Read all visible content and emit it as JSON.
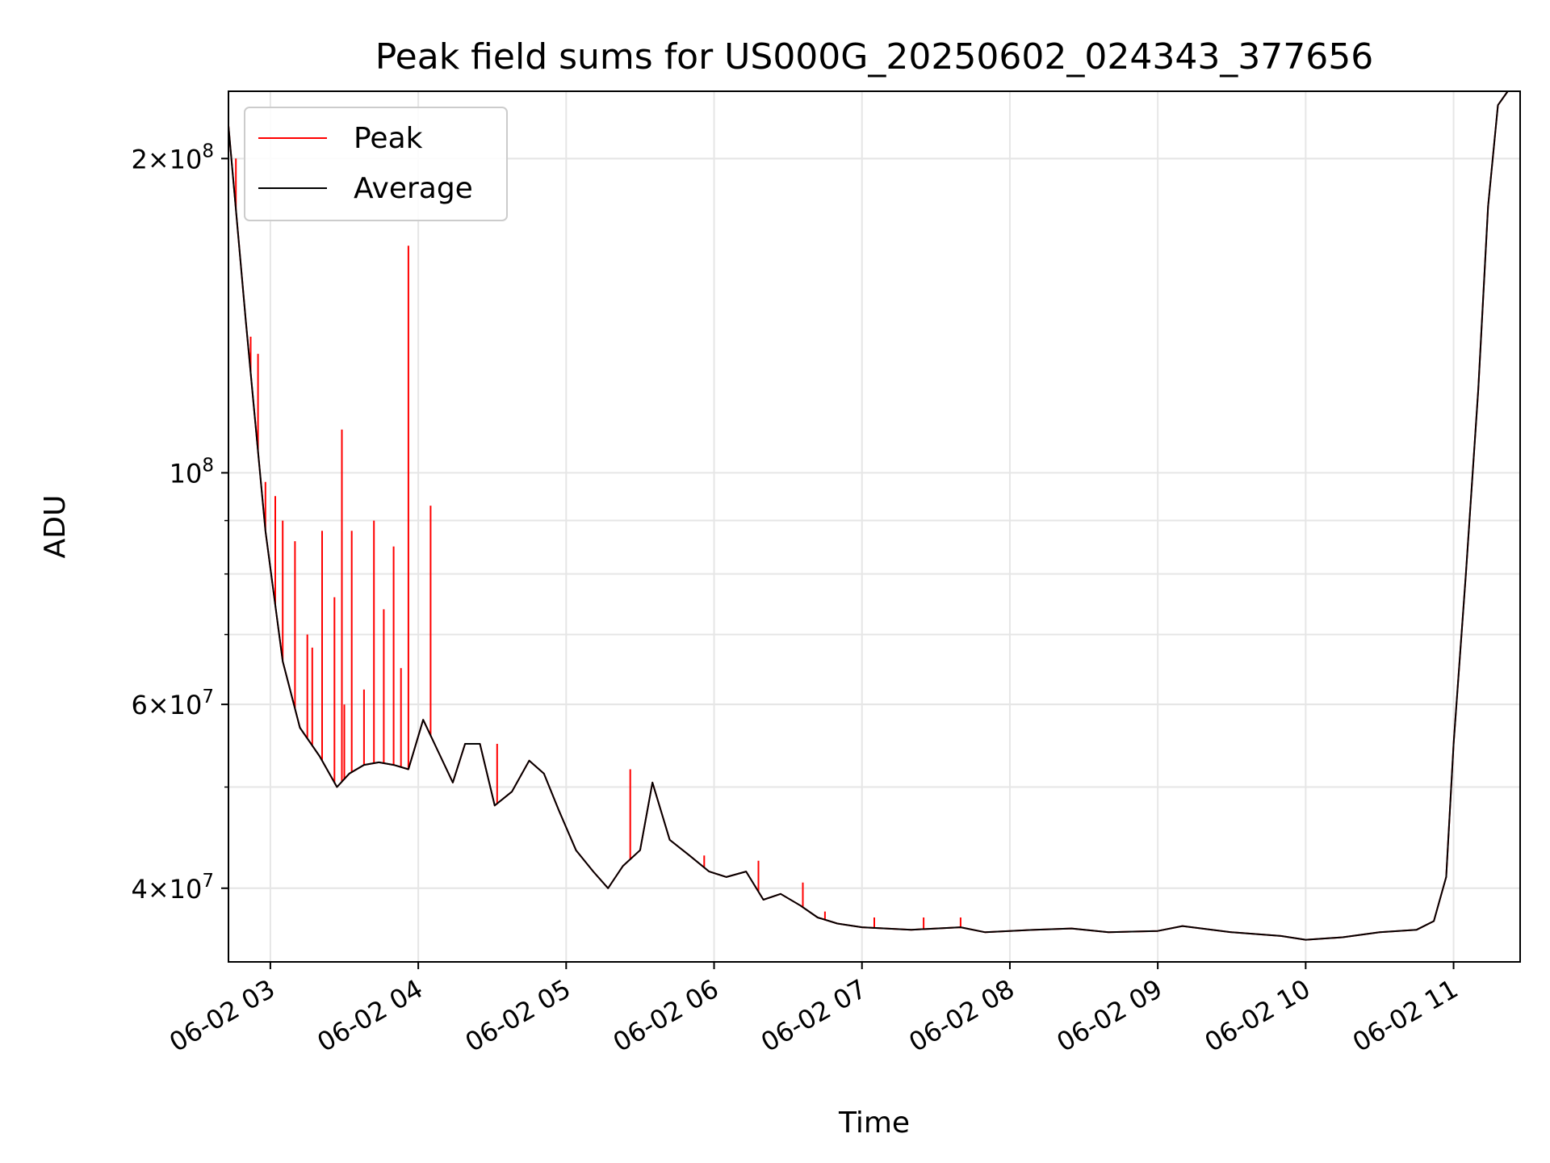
{
  "chart_data": {
    "type": "line",
    "title": "Peak field sums for US000G_20250602_024343_377656",
    "xlabel": "Time",
    "ylabel": "ADU",
    "yscale": "log",
    "ylim": [
      34000000,
      232000000
    ],
    "xlim": [
      "06-02 02:43",
      "06-02 11:27"
    ],
    "x_ticks": [
      "06-02 03",
      "06-02 04",
      "06-02 05",
      "06-02 06",
      "06-02 07",
      "06-02 08",
      "06-02 09",
      "06-02 10",
      "06-02 11"
    ],
    "y_major_ticks": [
      {
        "value": 40000000,
        "mantissa": "4",
        "exp": "7"
      },
      {
        "value": 60000000,
        "mantissa": "6",
        "exp": "7"
      },
      {
        "value": 100000000,
        "mantissa": "",
        "exp": "8"
      },
      {
        "value": 200000000,
        "mantissa": "2",
        "exp": "8"
      }
    ],
    "grid": true,
    "legend_position": "top-left",
    "series": [
      {
        "name": "Average",
        "color": "#000000",
        "x": [
          "06-02 02:43",
          "06-02 02:50",
          "06-02 02:58",
          "06-02 03:05",
          "06-02 03:12",
          "06-02 03:20",
          "06-02 03:27",
          "06-02 03:32",
          "06-02 03:38",
          "06-02 03:44",
          "06-02 03:50",
          "06-02 03:56",
          "06-02 04:02",
          "06-02 04:09",
          "06-02 04:14",
          "06-02 04:19",
          "06-02 04:25",
          "06-02 04:31",
          "06-02 04:38",
          "06-02 04:45",
          "06-02 04:51",
          "06-02 04:57",
          "06-02 05:04",
          "06-02 05:11",
          "06-02 05:17",
          "06-02 05:23",
          "06-02 05:30",
          "06-02 05:35",
          "06-02 05:42",
          "06-02 05:50",
          "06-02 05:58",
          "06-02 06:05",
          "06-02 06:13",
          "06-02 06:20",
          "06-02 06:27",
          "06-02 06:35",
          "06-02 06:42",
          "06-02 06:50",
          "06-02 07:00",
          "06-02 07:20",
          "06-02 07:40",
          "06-02 07:50",
          "06-02 08:10",
          "06-02 08:25",
          "06-02 08:40",
          "06-02 09:00",
          "06-02 09:10",
          "06-02 09:30",
          "06-02 09:50",
          "06-02 10:00",
          "06-02 10:15",
          "06-02 10:30",
          "06-02 10:45",
          "06-02 10:52",
          "06-02 10:57",
          "06-02 11:00",
          "06-02 11:05",
          "06-02 11:10",
          "06-02 11:14",
          "06-02 11:18",
          "06-02 11:22",
          "06-02 11:27"
        ],
        "y": [
          215000000,
          140000000,
          88000000,
          66000000,
          57000000,
          53500000,
          50000000,
          51500000,
          52500000,
          52800000,
          52500000,
          52000000,
          58000000,
          53500000,
          50500000,
          55000000,
          55000000,
          48000000,
          49500000,
          53000000,
          51500000,
          47500000,
          43500000,
          41500000,
          40000000,
          42000000,
          43500000,
          50500000,
          44500000,
          43000000,
          41500000,
          41000000,
          41500000,
          39000000,
          39500000,
          38500000,
          37500000,
          37000000,
          36700000,
          36500000,
          36700000,
          36300000,
          36500000,
          36600000,
          36300000,
          36400000,
          36800000,
          36300000,
          36000000,
          35700000,
          35900000,
          36300000,
          36500000,
          37200000,
          41000000,
          55000000,
          80000000,
          120000000,
          180000000,
          225000000,
          232000000,
          232000000
        ]
      },
      {
        "name": "Peak",
        "color": "#ff0000",
        "x": [
          "06-02 02:43",
          "06-02 02:46",
          "06-02 02:52",
          "06-02 02:55",
          "06-02 02:58",
          "06-02 03:02",
          "06-02 03:05",
          "06-02 03:10",
          "06-02 03:15",
          "06-02 03:17",
          "06-02 03:21",
          "06-02 03:26",
          "06-02 03:29",
          "06-02 03:30",
          "06-02 03:33",
          "06-02 03:38",
          "06-02 03:42",
          "06-02 03:46",
          "06-02 03:50",
          "06-02 03:53",
          "06-02 03:56",
          "06-02 04:05",
          "06-02 04:32",
          "06-02 05:26",
          "06-02 05:56",
          "06-02 06:18",
          "06-02 06:36",
          "06-02 06:45",
          "06-02 07:05",
          "06-02 07:25",
          "06-02 07:40",
          "06-02 10:58"
        ],
        "y": [
          215000000,
          200000000,
          135000000,
          130000000,
          98000000,
          95000000,
          90000000,
          86000000,
          70000000,
          68000000,
          88000000,
          76000000,
          110000000,
          60000000,
          88000000,
          62000000,
          90000000,
          74000000,
          85000000,
          65000000,
          165000000,
          93000000,
          55000000,
          52000000,
          43000000,
          42500000,
          40500000,
          38000000,
          37500000,
          37500000,
          37500000,
          41500000
        ]
      }
    ]
  }
}
